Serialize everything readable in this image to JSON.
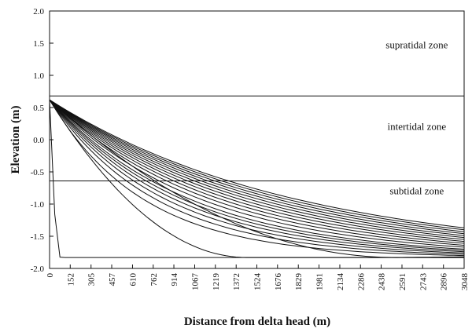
{
  "chart_data": {
    "type": "line",
    "title": "",
    "xlabel": "Distance from delta head (m)",
    "ylabel": "Elevation (m)",
    "xlim": [
      0,
      3048
    ],
    "ylim": [
      -2.0,
      2.0
    ],
    "grid": false,
    "legend": "none",
    "x_ticks": [
      0,
      152,
      305,
      457,
      610,
      762,
      914,
      1067,
      1219,
      1372,
      1524,
      1676,
      1829,
      1981,
      2134,
      2286,
      2438,
      2591,
      2743,
      2896,
      3048
    ],
    "y_ticks": [
      2.0,
      1.5,
      1.0,
      0.5,
      0.0,
      -0.5,
      -1.0,
      -1.5,
      -2.0
    ],
    "y_tick_labels": [
      "2.0",
      "1.5",
      "1.0",
      "0.5",
      "0.0",
      "-0.5",
      "-1.0",
      "-1.5",
      "-2.0"
    ],
    "reference_lines": [
      {
        "y": 0.68
      },
      {
        "y": -0.64
      }
    ],
    "zone_labels": [
      {
        "text": "supratidal zone",
        "x": 2700,
        "y": 1.42
      },
      {
        "text": "intertidal zone",
        "x": 2700,
        "y": 0.15
      },
      {
        "text": "subtidal zone",
        "x": 2700,
        "y": -0.85
      }
    ],
    "profile_start_elevation": 0.62,
    "profile_base_elevation": -1.83,
    "series": [
      {
        "y_at_3048": -1.83,
        "x_reach": 80
      },
      {
        "y_at_3048": -1.83,
        "x_reach": 1450
      },
      {
        "y_at_3048": -1.82,
        "x_reach": 2550
      },
      {
        "y_at_3048": -1.8
      },
      {
        "y_at_3048": -1.78
      },
      {
        "y_at_3048": -1.76
      },
      {
        "y_at_3048": -1.74
      },
      {
        "y_at_3048": -1.72
      },
      {
        "y_at_3048": -1.7
      },
      {
        "y_at_3048": -1.67
      },
      {
        "y_at_3048": -1.64
      },
      {
        "y_at_3048": -1.61
      },
      {
        "y_at_3048": -1.58
      },
      {
        "y_at_3048": -1.55
      },
      {
        "y_at_3048": -1.52
      },
      {
        "y_at_3048": -1.49
      },
      {
        "y_at_3048": -1.46
      },
      {
        "y_at_3048": -1.43
      },
      {
        "y_at_3048": -1.4
      },
      {
        "y_at_3048": -1.37
      }
    ]
  }
}
